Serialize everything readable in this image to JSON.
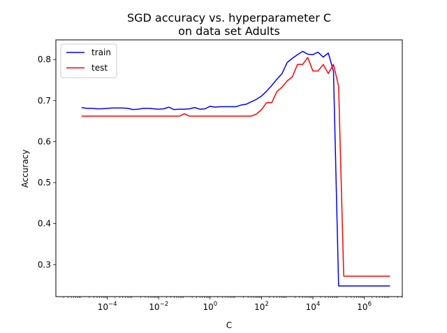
{
  "chart_data": {
    "type": "line",
    "title_lines": [
      "SGD accuracy vs. hyperparameter C",
      "on data set Adults"
    ],
    "xlabel": "C",
    "ylabel": "Accuracy",
    "x_scale": "log",
    "xlim": [
      1e-06,
      30000000.0
    ],
    "ylim": [
      0.222,
      0.848
    ],
    "xticks": [
      {
        "value": 0.0001,
        "base": "10",
        "exp": "−4"
      },
      {
        "value": 0.01,
        "base": "10",
        "exp": "−2"
      },
      {
        "value": 1,
        "base": "10",
        "exp": "0"
      },
      {
        "value": 100,
        "base": "10",
        "exp": "2"
      },
      {
        "value": 10000,
        "base": "10",
        "exp": "4"
      },
      {
        "value": 1000000,
        "base": "10",
        "exp": "6"
      }
    ],
    "yticks": [
      {
        "value": 0.3,
        "label": "0.3"
      },
      {
        "value": 0.4,
        "label": "0.4"
      },
      {
        "value": 0.5,
        "label": "0.5"
      },
      {
        "value": 0.6,
        "label": "0.6"
      },
      {
        "value": 0.7,
        "label": "0.7"
      },
      {
        "value": 0.8,
        "label": "0.8"
      }
    ],
    "grid": false,
    "legend_position": "top-left",
    "x": [
      1e-05,
      1.58e-05,
      2.51e-05,
      3.98e-05,
      6.31e-05,
      0.0001,
      0.000158,
      0.000251,
      0.000398,
      0.000631,
      0.001,
      0.00158,
      0.00251,
      0.00398,
      0.00631,
      0.01,
      0.0158,
      0.0251,
      0.0398,
      0.0631,
      0.1,
      0.158,
      0.251,
      0.398,
      0.631,
      1,
      1.58,
      2.51,
      3.98,
      6.31,
      10,
      15.8,
      25.1,
      39.8,
      63.1,
      100,
      158,
      251,
      398,
      631,
      1000,
      1580,
      2510,
      3980,
      6310,
      10000,
      15800,
      25100,
      39800,
      63100,
      100000,
      158000,
      251000,
      398000,
      631000,
      1000000,
      1580000,
      2510000,
      3980000,
      6310000,
      10000000
    ],
    "series": [
      {
        "name": "train",
        "color": "#0000ff",
        "values": [
          0.683,
          0.681,
          0.681,
          0.68,
          0.68,
          0.681,
          0.682,
          0.682,
          0.682,
          0.681,
          0.678,
          0.679,
          0.681,
          0.681,
          0.68,
          0.679,
          0.68,
          0.684,
          0.678,
          0.679,
          0.679,
          0.68,
          0.683,
          0.679,
          0.68,
          0.686,
          0.684,
          0.685,
          0.685,
          0.685,
          0.685,
          0.689,
          0.691,
          0.697,
          0.703,
          0.711,
          0.723,
          0.737,
          0.752,
          0.766,
          0.793,
          0.803,
          0.812,
          0.82,
          0.813,
          0.812,
          0.818,
          0.806,
          0.816,
          0.771,
          0.248,
          0.248,
          0.248,
          0.248,
          0.248,
          0.248,
          0.248,
          0.248,
          0.248,
          0.248,
          0.248
        ]
      },
      {
        "name": "test",
        "color": "#ff0000",
        "values": [
          0.662,
          0.662,
          0.662,
          0.662,
          0.662,
          0.662,
          0.662,
          0.662,
          0.662,
          0.662,
          0.662,
          0.662,
          0.662,
          0.662,
          0.662,
          0.662,
          0.662,
          0.662,
          0.662,
          0.662,
          0.668,
          0.662,
          0.662,
          0.662,
          0.662,
          0.662,
          0.662,
          0.662,
          0.662,
          0.662,
          0.662,
          0.662,
          0.662,
          0.662,
          0.667,
          0.678,
          0.695,
          0.695,
          0.722,
          0.733,
          0.748,
          0.758,
          0.788,
          0.788,
          0.805,
          0.772,
          0.772,
          0.788,
          0.766,
          0.788,
          0.735,
          0.272,
          0.272,
          0.272,
          0.272,
          0.272,
          0.272,
          0.272,
          0.272,
          0.272,
          0.272
        ]
      }
    ]
  }
}
